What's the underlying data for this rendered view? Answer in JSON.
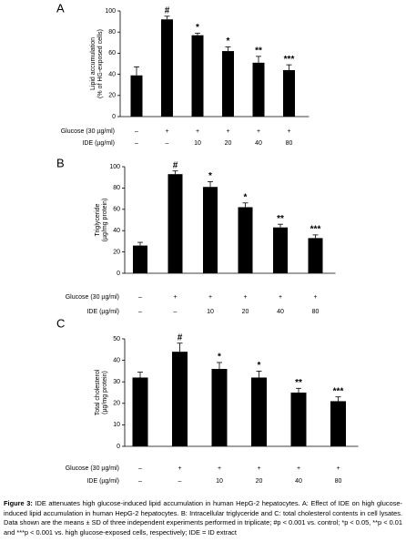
{
  "chart_data": [
    {
      "type": "bar",
      "panel_label": "A",
      "ylabel": [
        "Lipid accumulation",
        "(% of HG-exposed cells)"
      ],
      "ylim": [
        0,
        100
      ],
      "yticks": [
        0,
        20,
        40,
        60,
        80,
        100
      ],
      "color": "#000000",
      "values": [
        39,
        92,
        77,
        62,
        51,
        44
      ],
      "errors": [
        8,
        3,
        2,
        4,
        6,
        5
      ],
      "annotations": [
        null,
        "#",
        "*",
        "*",
        "**",
        "***"
      ],
      "rows": [
        {
          "label": "Glucose (30 µg/ml)",
          "values": [
            "–",
            "+",
            "+",
            "+",
            "+",
            "+"
          ]
        },
        {
          "label": "IDE (µg/ml)",
          "values": [
            "–",
            "–",
            "10",
            "20",
            "40",
            "80"
          ]
        }
      ]
    },
    {
      "type": "bar",
      "panel_label": "B",
      "ylabel": [
        "Triglyceride",
        "(µg/mg protein)"
      ],
      "ylim": [
        0,
        100
      ],
      "yticks": [
        0,
        20,
        40,
        60,
        80,
        100
      ],
      "color": "#000000",
      "values": [
        26,
        93,
        81,
        62,
        43,
        33
      ],
      "errors": [
        3,
        3,
        5,
        4,
        3,
        3
      ],
      "annotations": [
        null,
        "#",
        "*",
        "*",
        "**",
        "***"
      ],
      "rows": [
        {
          "label": "Glucose (30 µg/ml)",
          "values": [
            "–",
            "+",
            "+",
            "+",
            "+",
            "+"
          ]
        },
        {
          "label": "IDE (µg/ml)",
          "values": [
            "–",
            "–",
            "10",
            "20",
            "40",
            "80"
          ]
        }
      ]
    },
    {
      "type": "bar",
      "panel_label": "C",
      "ylabel": [
        "Total cholesterol",
        "(µg/mg protein)"
      ],
      "ylim": [
        0,
        50
      ],
      "yticks": [
        0,
        10,
        20,
        30,
        40,
        50
      ],
      "color": "#000000",
      "values": [
        32,
        44,
        36,
        32,
        25,
        21
      ],
      "errors": [
        2.5,
        4,
        3,
        3,
        2,
        2
      ],
      "annotations": [
        null,
        "#",
        "*",
        "*",
        "**",
        "***"
      ],
      "rows": [
        {
          "label": "Glucose (30 µg/ml)",
          "values": [
            "–",
            "+",
            "+",
            "+",
            "+",
            "+"
          ]
        },
        {
          "label": "IDE (µg/ml)",
          "values": [
            "–",
            "–",
            "10",
            "20",
            "40",
            "80"
          ]
        }
      ]
    }
  ],
  "caption": {
    "label": "Figure 3:",
    "text": "IDE attenuates high glucose-induced lipid accumulation in human HepG-2 hepatocytes. A: Effect of IDE on high glucose-induced lipid accumulation in human HepG-2 hepatocytes. B: Intracellular triglyceride and C: total cholesterol contents in cell lysates. Data shown are the means ± SD of three independent experiments performed in triplicate; #p < 0.001 vs. control; *p < 0.05, **p < 0.01 and ***p < 0.001 vs. high glucose-exposed cells, respectively; IDE = ID extract"
  }
}
